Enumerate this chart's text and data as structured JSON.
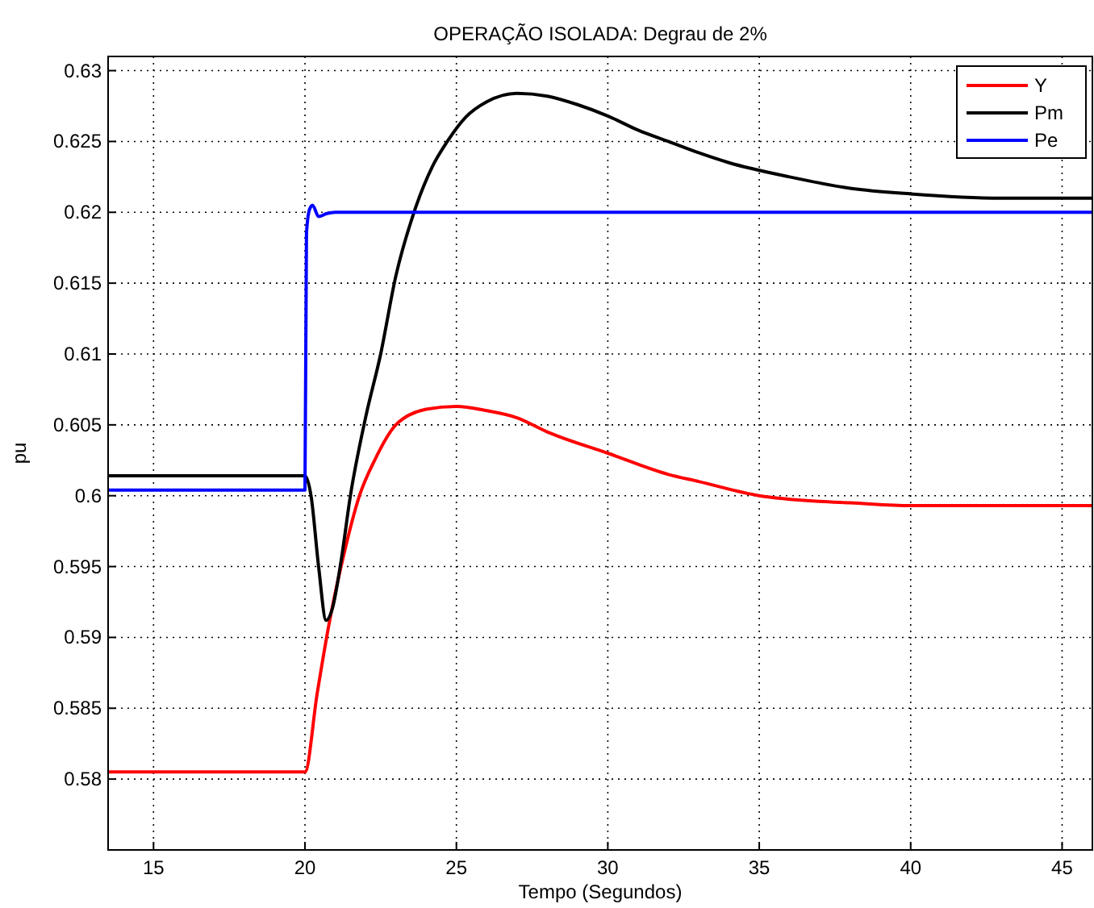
{
  "chart_data": {
    "type": "line",
    "title": "OPERAÇÃO ISOLADA: Degrau de 2%",
    "xlabel": "Tempo (Segundos)",
    "ylabel": "pu",
    "xlim": [
      13.5,
      46
    ],
    "xticks": [
      15,
      20,
      25,
      30,
      35,
      40,
      45
    ],
    "ylim": [
      0.575,
      0.631
    ],
    "yticks": [
      0.58,
      0.585,
      0.59,
      0.595,
      0.6,
      0.605,
      0.61,
      0.615,
      0.62,
      0.625,
      0.63
    ],
    "grid": true,
    "legend": "top right",
    "marker": "none",
    "line_style": "solid",
    "series": [
      {
        "name": "Y",
        "color": "#ff0000",
        "x": [
          13.5,
          20,
          20.4,
          20.8,
          21.3,
          21.8,
          22.3,
          23,
          24,
          25,
          26,
          27,
          28,
          30,
          32,
          33,
          35,
          37,
          38,
          40,
          43,
          46
        ],
        "values": [
          0.5805,
          0.5805,
          0.586,
          0.591,
          0.596,
          0.6,
          0.6025,
          0.605,
          0.6061,
          0.6063,
          0.606,
          0.6055,
          0.6045,
          0.603,
          0.6015,
          0.601,
          0.6,
          0.5996,
          0.5995,
          0.5993,
          0.5993,
          0.5993
        ]
      },
      {
        "name": "Pm",
        "color": "#000000",
        "x": [
          13.5,
          20,
          20.2,
          20.45,
          20.7,
          20.9,
          21.2,
          21.5,
          22,
          22.5,
          23,
          23.6,
          24.2,
          24.7,
          25.3,
          26,
          27,
          28,
          29,
          30,
          31,
          32,
          33,
          34,
          36,
          38,
          40,
          43,
          46
        ],
        "values": [
          0.6014,
          0.6014,
          0.6,
          0.595,
          0.5912,
          0.592,
          0.5955,
          0.6,
          0.6055,
          0.61,
          0.6155,
          0.62,
          0.6232,
          0.625,
          0.6267,
          0.6278,
          0.6284,
          0.6282,
          0.6276,
          0.6268,
          0.6258,
          0.625,
          0.6242,
          0.6235,
          0.6225,
          0.6217,
          0.6213,
          0.621,
          0.621
        ]
      },
      {
        "name": "Pe",
        "color": "#0000ff",
        "x": [
          13.5,
          20,
          20.05,
          20.15,
          20.25,
          20.45,
          20.7,
          21,
          46
        ],
        "values": [
          0.6004,
          0.6004,
          0.6185,
          0.6202,
          0.6205,
          0.6197,
          0.6199,
          0.62,
          0.62
        ]
      }
    ]
  }
}
